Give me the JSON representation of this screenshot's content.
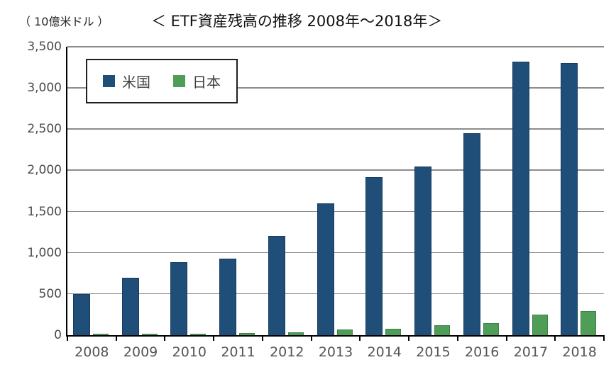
{
  "chart_data": {
    "type": "bar",
    "title": "＜ ETF資産残高の推移 2008年～2018年＞",
    "unit_label": "（ 10億米ドル ）",
    "categories": [
      "2008",
      "2009",
      "2010",
      "2011",
      "2012",
      "2013",
      "2014",
      "2015",
      "2016",
      "2017",
      "2018"
    ],
    "series": [
      {
        "name": "米国",
        "color": "#1F4E79",
        "border_color": "#173C5E",
        "values": [
          500,
          700,
          890,
          930,
          1200,
          1600,
          1920,
          2050,
          2450,
          3320,
          3300
        ]
      },
      {
        "name": "日本",
        "color": "#4F9E58",
        "border_color": "#3E8049",
        "values": [
          20,
          10,
          20,
          30,
          35,
          70,
          80,
          120,
          150,
          250,
          290
        ]
      }
    ],
    "ylim": [
      0,
      3500
    ],
    "ytick_step": 500,
    "ytick_labels": [
      "0",
      "500",
      "1,000",
      "1,500",
      "2,000",
      "2,500",
      "3,000",
      "3,500"
    ],
    "grid": true,
    "grid_color": "#8C8C8C",
    "axis_color": "#000000",
    "legend_position": "top-left-inside"
  }
}
